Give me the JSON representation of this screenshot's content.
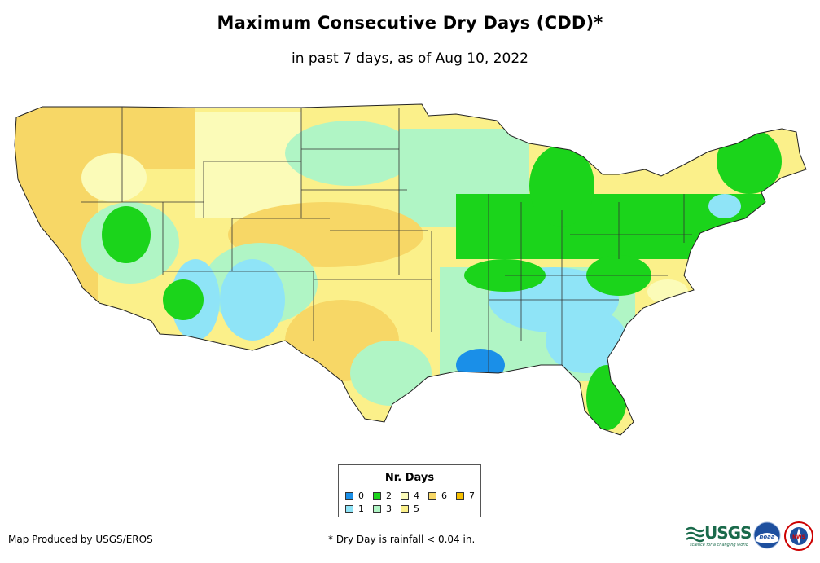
{
  "title": "Maximum Consecutive Dry Days (CDD)*",
  "subtitle": "in past 7 days, as of Aug 10, 2022",
  "legend": {
    "title": "Nr. Days",
    "items": [
      {
        "label": "0",
        "color": "#1a8fe8"
      },
      {
        "label": "1",
        "color": "#8fe4f7"
      },
      {
        "label": "2",
        "color": "#1bd41b"
      },
      {
        "label": "3",
        "color": "#b0f5c5"
      },
      {
        "label": "4",
        "color": "#fbfbb8"
      },
      {
        "label": "5",
        "color": "#fbf08a"
      },
      {
        "label": "6",
        "color": "#f7d766"
      },
      {
        "label": "7",
        "color": "#f7c000"
      }
    ]
  },
  "footer": {
    "credit": "Map Produced by USGS/EROS",
    "note": "* Dry Day is rainfall < 0.04 in."
  },
  "logos": {
    "usgs": "USGS",
    "usgs_tagline": "science for a changing world",
    "noaa": "noaa",
    "nws": "NWS"
  }
}
